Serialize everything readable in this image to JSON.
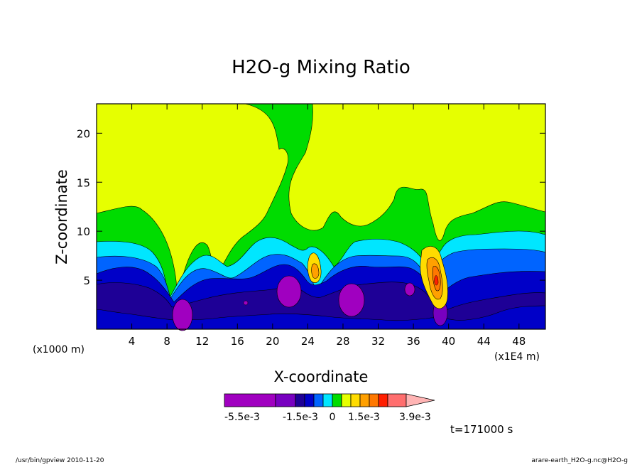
{
  "chart_data": {
    "type": "heatmap",
    "title": "H2O-g Mixing Ratio",
    "xlabel": "X-coordinate",
    "ylabel": "Z-coordinate",
    "x_unit_left": "(x1000 m)",
    "x_unit_right": "(x1E4 m)",
    "xlim": [
      0,
      51
    ],
    "ylim": [
      0,
      23
    ],
    "x_ticks": [
      4,
      8,
      12,
      16,
      20,
      24,
      28,
      32,
      36,
      40,
      44,
      48
    ],
    "y_ticks": [
      5,
      10,
      15,
      20
    ],
    "colorbar": {
      "colors": [
        "#a000c0",
        "#7800c0",
        "#1e0096",
        "#0000c8",
        "#0064ff",
        "#00e6ff",
        "#00dc00",
        "#e6ff00",
        "#ffdc00",
        "#ffa000",
        "#ff7800",
        "#ff1e00",
        "#ff6e6e",
        "#ffb4b4"
      ],
      "labels": [
        "-5.5e-3",
        "-1.5e-3",
        "0",
        "1.5e-3",
        "3.9e-3"
      ]
    },
    "annotation": "t=171000 s"
  },
  "footer": {
    "left": "/usr/bin/gpview  2010-11-20",
    "right": "arare-earth_H2O-g.nc@H2O-g"
  }
}
